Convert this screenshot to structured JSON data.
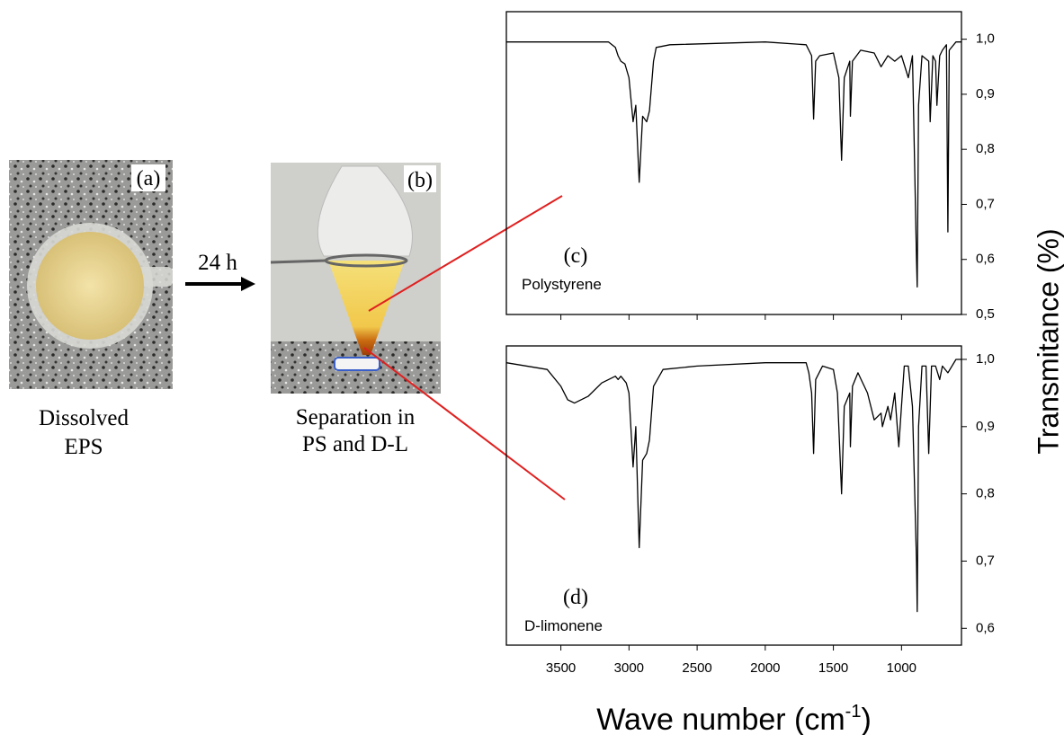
{
  "photos": [
    {
      "label": "(a)",
      "caption": [
        "Dissolved",
        "EPS"
      ]
    },
    {
      "label": "(b)",
      "caption": [
        "Separation in",
        "PS and D-L"
      ]
    }
  ],
  "arrow_label": "24 h",
  "shared_axes": {
    "y_label": "Transmitance (%)",
    "x_label": {
      "text": "Wave number (cm",
      "superscript": "-1",
      "close": ")"
    }
  },
  "chart_data": [
    {
      "type": "line",
      "panel": "(c)",
      "annotation": "Polystyrene",
      "color": "#000000",
      "xlim": [
        3900,
        560
      ],
      "ylim": [
        0.5,
        1.05
      ],
      "xticks": [
        3500,
        3000,
        2500,
        2000,
        1500,
        1000
      ],
      "yticks": [
        {
          "value": 1.0,
          "label": "1,0"
        },
        {
          "value": 0.9,
          "label": "0,9"
        },
        {
          "value": 0.8,
          "label": "0,8"
        },
        {
          "value": 0.7,
          "label": "0,7"
        },
        {
          "value": 0.6,
          "label": "0,6"
        },
        {
          "value": 0.5,
          "label": "0,5"
        }
      ],
      "x": [
        3900,
        3150,
        3100,
        3080,
        3060,
        3030,
        3000,
        2970,
        2950,
        2925,
        2900,
        2870,
        2850,
        2820,
        2800,
        2700,
        2000,
        1700,
        1660,
        1645,
        1630,
        1600,
        1500,
        1460,
        1440,
        1420,
        1380,
        1375,
        1360,
        1300,
        1200,
        1150,
        1100,
        1050,
        1000,
        950,
        920,
        890,
        885,
        875,
        850,
        800,
        790,
        770,
        750,
        740,
        720,
        700,
        670,
        660,
        650,
        600,
        560
      ],
      "values": [
        0.995,
        0.995,
        0.985,
        0.97,
        0.96,
        0.955,
        0.93,
        0.85,
        0.88,
        0.74,
        0.86,
        0.85,
        0.87,
        0.96,
        0.985,
        0.99,
        0.995,
        0.99,
        0.97,
        0.855,
        0.96,
        0.97,
        0.975,
        0.93,
        0.78,
        0.93,
        0.96,
        0.86,
        0.96,
        0.98,
        0.975,
        0.95,
        0.97,
        0.96,
        0.97,
        0.93,
        0.97,
        0.6,
        0.55,
        0.88,
        0.97,
        0.96,
        0.85,
        0.97,
        0.96,
        0.88,
        0.97,
        0.98,
        0.99,
        0.65,
        0.98,
        0.995,
        0.995
      ]
    },
    {
      "type": "line",
      "panel": "(d)",
      "annotation": "D-limonene",
      "color": "#000000",
      "xlim": [
        3900,
        560
      ],
      "ylim": [
        0.575,
        1.02
      ],
      "xticks": [
        3500,
        3000,
        2500,
        2000,
        1500,
        1000
      ],
      "yticks": [
        {
          "value": 1.0,
          "label": "1,0"
        },
        {
          "value": 0.9,
          "label": "0,9"
        },
        {
          "value": 0.8,
          "label": "0,8"
        },
        {
          "value": 0.7,
          "label": "0,7"
        },
        {
          "value": 0.6,
          "label": "0,6"
        }
      ],
      "x": [
        3900,
        3600,
        3500,
        3450,
        3400,
        3300,
        3200,
        3100,
        3080,
        3060,
        3020,
        3000,
        2970,
        2950,
        2925,
        2900,
        2870,
        2850,
        2820,
        2750,
        2500,
        2000,
        1700,
        1680,
        1660,
        1645,
        1630,
        1580,
        1500,
        1470,
        1440,
        1420,
        1380,
        1375,
        1360,
        1320,
        1250,
        1200,
        1150,
        1140,
        1100,
        1080,
        1050,
        1020,
        1000,
        980,
        950,
        920,
        890,
        885,
        875,
        850,
        820,
        800,
        780,
        750,
        720,
        700,
        660,
        600,
        560
      ],
      "values": [
        0.995,
        0.985,
        0.96,
        0.94,
        0.935,
        0.945,
        0.965,
        0.975,
        0.97,
        0.975,
        0.965,
        0.95,
        0.84,
        0.9,
        0.72,
        0.85,
        0.86,
        0.88,
        0.96,
        0.985,
        0.99,
        0.995,
        0.995,
        0.98,
        0.95,
        0.86,
        0.97,
        0.99,
        0.985,
        0.95,
        0.8,
        0.93,
        0.95,
        0.87,
        0.96,
        0.98,
        0.95,
        0.91,
        0.92,
        0.9,
        0.93,
        0.91,
        0.95,
        0.87,
        0.93,
        0.99,
        0.99,
        0.93,
        0.7,
        0.625,
        0.9,
        0.99,
        0.99,
        0.86,
        0.99,
        0.99,
        0.97,
        0.99,
        0.98,
        1.0,
        1.0
      ]
    }
  ]
}
